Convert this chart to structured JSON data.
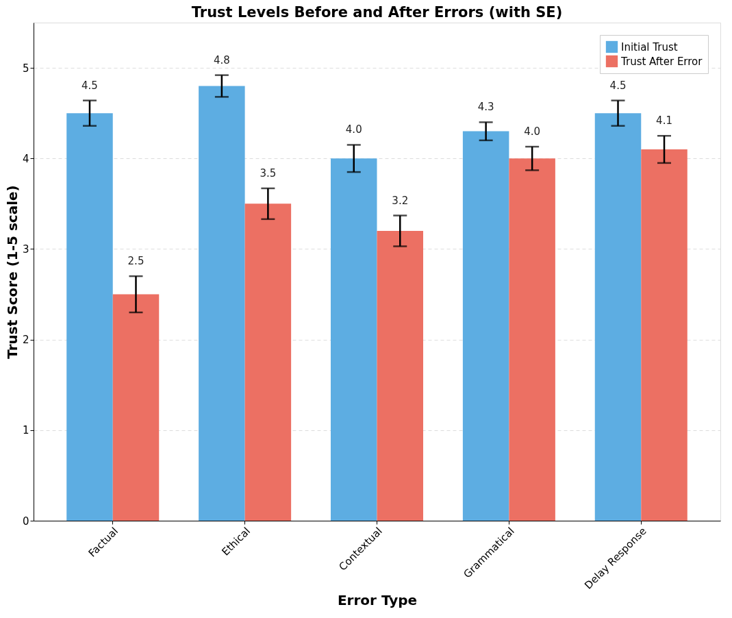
{
  "chart_data": {
    "type": "bar",
    "title": "Trust Levels Before and After Errors (with SE)",
    "xlabel": "Error Type",
    "ylabel": "Trust Score (1-5 scale)",
    "categories": [
      "Factual",
      "Ethical",
      "Contextual",
      "Grammatical",
      "Delay Response"
    ],
    "series": [
      {
        "name": "Initial Trust",
        "color": "#5dade2",
        "values": [
          4.5,
          4.8,
          4.0,
          4.3,
          4.5
        ],
        "value_labels": [
          "4.5",
          "4.8",
          "4.0",
          "4.3",
          "4.5"
        ],
        "errors": [
          0.14,
          0.12,
          0.15,
          0.1,
          0.14
        ]
      },
      {
        "name": "Trust After Error",
        "color": "#ec7063",
        "values": [
          2.5,
          3.5,
          3.2,
          4.0,
          4.1
        ],
        "value_labels": [
          "2.5",
          "3.5",
          "3.2",
          "4.0",
          "4.1"
        ],
        "errors": [
          0.2,
          0.17,
          0.17,
          0.13,
          0.15
        ]
      }
    ],
    "ylim": [
      0,
      5.5
    ],
    "yticks": [
      0,
      1,
      2,
      3,
      4,
      5
    ],
    "grid": "y",
    "legend": "top right"
  }
}
